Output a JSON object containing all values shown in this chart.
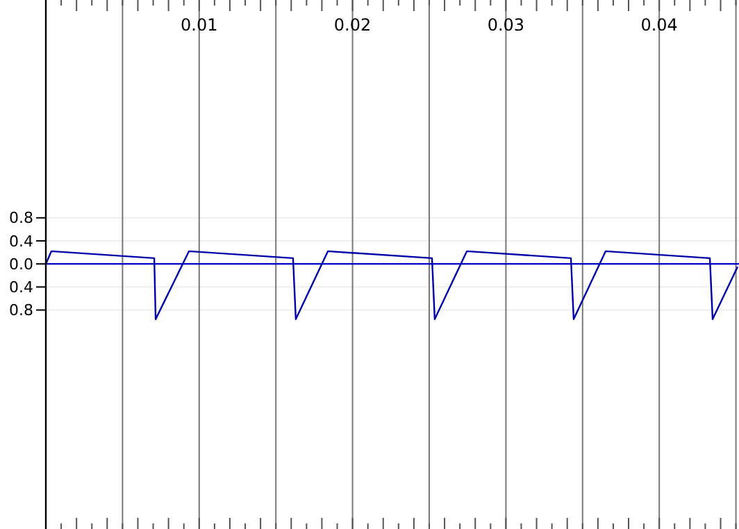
{
  "chart_data": {
    "type": "line",
    "x": [
      0,
      0.00036,
      0.00707,
      0.00716,
      0.00933,
      0.01612,
      0.0163,
      0.01839,
      0.02518,
      0.02536,
      0.02745,
      0.03424,
      0.03442,
      0.0365,
      0.0433,
      0.04348,
      0.04511
    ],
    "series": [
      {
        "color": "#0000aa",
        "values": [
          0,
          0.22,
          0.1,
          -0.96,
          0.22,
          0.1,
          -0.96,
          0.22,
          0.1,
          -0.96,
          0.22,
          0.1,
          -0.96,
          0.22,
          0.1,
          -0.96,
          -0.05
        ]
      }
    ],
    "xlim": [
      0,
      0.0452
    ],
    "ylim": [
      -4.6,
      4.58
    ],
    "xticks": [
      {
        "value": 0,
        "label": null
      },
      {
        "value": 0.005,
        "label": null
      },
      0.01,
      {
        "value": 0.015,
        "label": null
      },
      0.02,
      {
        "value": 0.025,
        "label": null
      },
      0.03,
      {
        "value": 0.035,
        "label": null
      },
      0.04,
      {
        "value": 0.045,
        "label": null
      }
    ],
    "yticks": [
      0.8,
      0.4,
      {
        "value": 0,
        "label": "0.0"
      },
      {
        "value": -0.4,
        "label": "0.4"
      },
      {
        "value": -0.8,
        "label": "0.8"
      }
    ],
    "ref_lines": [
      {
        "axis": "y",
        "value": 0,
        "label": null,
        "color": "#0000cc"
      }
    ],
    "grid": true,
    "marker": "none",
    "line_style": "solid"
  }
}
